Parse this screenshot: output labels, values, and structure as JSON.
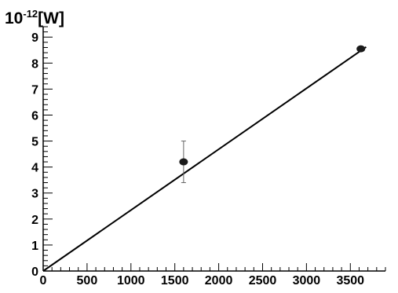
{
  "chart_data": {
    "type": "scatter",
    "xlim": [
      0,
      3900
    ],
    "ylim": [
      0,
      9.4
    ],
    "x_ticks": [
      0,
      500,
      1000,
      1500,
      2000,
      2500,
      3000,
      3500
    ],
    "y_ticks": [
      0,
      1,
      2,
      3,
      4,
      5,
      6,
      7,
      8,
      9
    ],
    "y_unit": {
      "base": "10",
      "exponent": "-12",
      "unit": "[W]"
    },
    "grid": false,
    "series": [
      {
        "type": "scatter",
        "points": [
          {
            "x": 1600,
            "y": 4.2,
            "y_err_low": 0.8,
            "y_err_high": 0.8
          },
          {
            "x": 3620,
            "y": 8.55,
            "y_err_low": 0.05,
            "y_err_high": 0.05
          }
        ]
      },
      {
        "type": "line",
        "points": [
          {
            "x": 0,
            "y": 0
          },
          {
            "x": 3680,
            "y": 8.62
          }
        ]
      }
    ]
  },
  "colors": {
    "axis": "#000000",
    "marker": "#1a1a1a",
    "fit_line": "#000000",
    "error_bar": "#666666"
  }
}
